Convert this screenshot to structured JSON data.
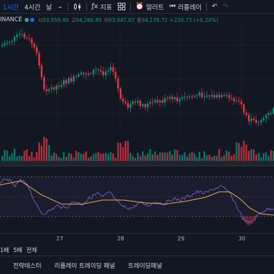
{
  "toolbar": {
    "tf_1h": "1시간",
    "tf_4h": "4시간",
    "tf_day": "날",
    "indicators_label": "지표",
    "alert_label": "얼러트",
    "replay_label": "리플레이"
  },
  "legend": {
    "symbol": "INANCE",
    "open_label": "시",
    "open": "93,959.49",
    "high_label": "고",
    "high": "94,266.89",
    "low_label": "저",
    "low": "93,947.07",
    "close_label": "종",
    "close": "94,178.72",
    "change": "+220.73 (+0.24%)"
  },
  "colors": {
    "up": "#089981",
    "down": "#f23645",
    "rsi": "#7e57c2",
    "rsi_ma": "#e0b84a",
    "background": "#131722"
  },
  "time_axis": {
    "labels": [
      "27",
      "28",
      "29",
      "30"
    ]
  },
  "range_bar": {
    "items": [
      "1배",
      "5배",
      "전체"
    ]
  },
  "bottom_tabs": [
    "전략테스터",
    "리플레이 트레이딩 패널",
    "트레이딩패널"
  ]
}
